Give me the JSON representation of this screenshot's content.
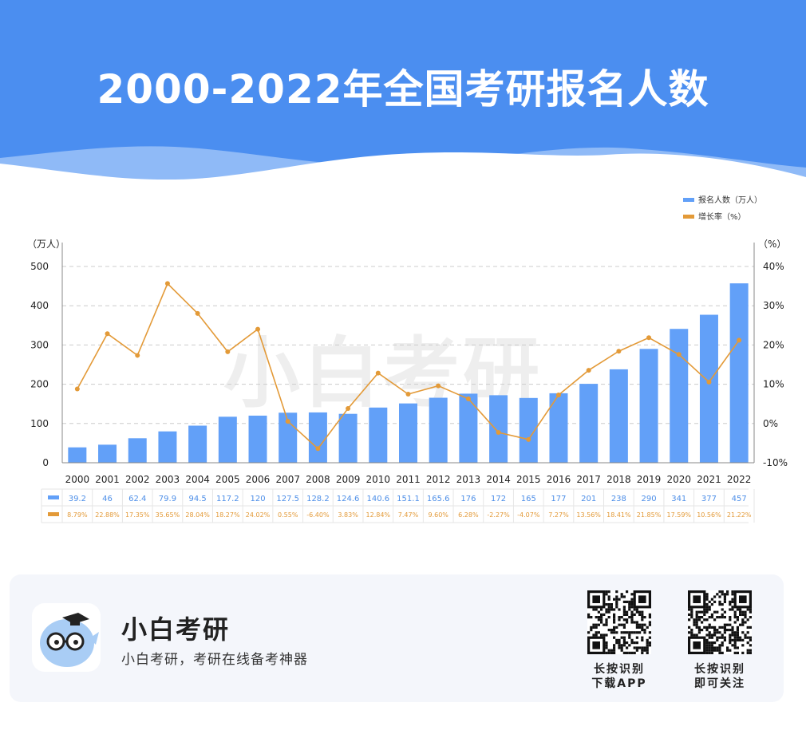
{
  "title": "2000-2022年全国考研报名人数",
  "watermark": "小白考研",
  "colors": {
    "header": "#4b8ef0",
    "bar": "#62a0f8",
    "line": "#e39a38"
  },
  "chart_data": {
    "type": "bar+line",
    "categories": [
      "2000",
      "2001",
      "2002",
      "2003",
      "2004",
      "2005",
      "2006",
      "2007",
      "2008",
      "2009",
      "2010",
      "2011",
      "2012",
      "2013",
      "2014",
      "2015",
      "2016",
      "2017",
      "2018",
      "2019",
      "2020",
      "2021",
      "2022"
    ],
    "series": [
      {
        "name": "报名人数（万人）",
        "type": "bar",
        "axis": "left",
        "values": [
          39.2,
          46,
          62.4,
          79.9,
          94.5,
          117.2,
          120,
          127.5,
          128.2,
          124.6,
          140.6,
          151.1,
          165.6,
          176,
          172,
          165,
          177,
          201,
          238,
          290,
          341,
          377,
          457
        ]
      },
      {
        "name": "增长率（%）",
        "type": "line",
        "axis": "right",
        "values": [
          8.79,
          22.88,
          17.35,
          35.65,
          28.04,
          18.27,
          24.02,
          0.55,
          -6.4,
          3.83,
          12.84,
          7.47,
          9.6,
          6.28,
          -2.27,
          -4.07,
          7.27,
          13.56,
          18.41,
          21.85,
          17.59,
          10.56,
          21.22
        ]
      }
    ],
    "table_rows": [
      [
        "39.2",
        "46",
        "62.4",
        "79.9",
        "94.5",
        "117.2",
        "120",
        "127.5",
        "128.2",
        "124.6",
        "140.6",
        "151.1",
        "165.6",
        "176",
        "172",
        "165",
        "177",
        "201",
        "238",
        "290",
        "341",
        "377",
        "457"
      ],
      [
        "8.79%",
        "22.88%",
        "17.35%",
        "35.65%",
        "28.04%",
        "18.27%",
        "24.02%",
        "0.55%",
        "-6.40%",
        "3.83%",
        "12.84%",
        "7.47%",
        "9.60%",
        "6.28%",
        "-2.27%",
        "-4.07%",
        "7.27%",
        "13.56%",
        "18.41%",
        "21.85%",
        "17.59%",
        "10.56%",
        "21.22%"
      ]
    ],
    "y_left": {
      "label": "（万人）",
      "ticks": [
        "0",
        "100",
        "200",
        "300",
        "400",
        "500"
      ],
      "ylim": [
        0,
        500
      ]
    },
    "y_right": {
      "label": "（%）",
      "ticks": [
        "-10%",
        "0%",
        "10%",
        "20%",
        "30%",
        "40%"
      ],
      "ylim": [
        -10,
        40
      ]
    },
    "grid": true,
    "legend_position": "top-right"
  },
  "footer": {
    "app_name": "小白考研",
    "slogan": "小白考研，考研在线备考神器",
    "qr_app_caption": [
      "长按识别",
      "下载APP"
    ],
    "qr_follow_caption": [
      "长按识别",
      "即可关注"
    ]
  }
}
